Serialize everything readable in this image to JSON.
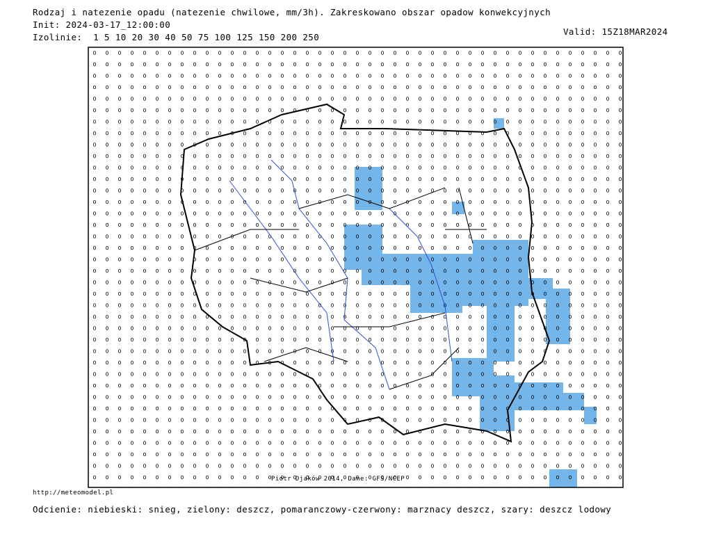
{
  "header": {
    "title": "Rodzaj i natezenie opadu (natezenie chwilowe, mm/3h). Zakreskowano obszar opadow konwekcyjnych",
    "init": "Init: 2024-03-17_12:00:00",
    "isolines": "Izolinie:  1 5 10 20 30 40 50 75 100 125 150 200 250",
    "valid": "Valid: 15Z18MAR2024"
  },
  "map": {
    "credit": "Piotr Djaków 2014, Dane: GFS/NCEP"
  },
  "footer": {
    "url": "http://meteomodel.pl",
    "legend": "Odcienie: niebieski: snieg, zielony: deszcz, pomaranczowy-czerwony: marznacy deszcz, szary: deszcz lodowy"
  }
}
